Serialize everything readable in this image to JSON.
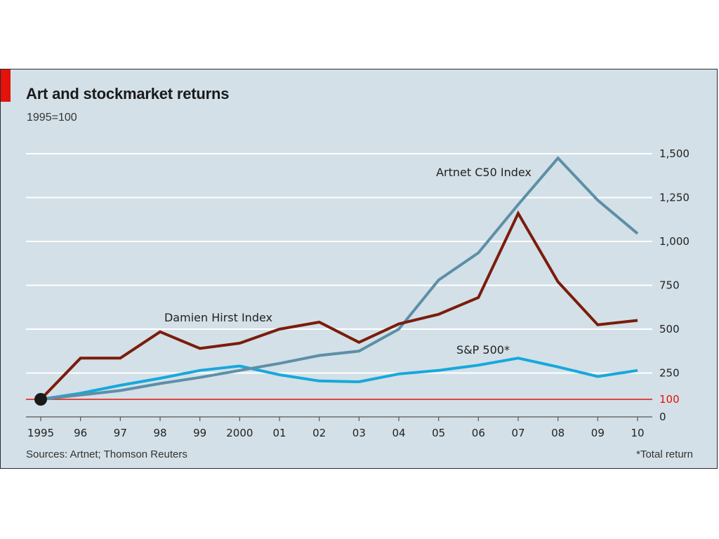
{
  "header": {
    "title": "Art and stockmarket returns",
    "subtitle": "1995=100"
  },
  "footer": {
    "source": "Sources: Artnet; Thomson Reuters",
    "footnote": "*Total return"
  },
  "colors": {
    "accent": "#e3120b",
    "background": "#d3e0e7",
    "gridline": "#ffffff",
    "baseline": "#e3120b"
  },
  "chart_data": {
    "type": "line",
    "title": "Art and stockmarket returns",
    "subtitle": "1995=100",
    "x": [
      "1995",
      "96",
      "97",
      "98",
      "99",
      "2000",
      "01",
      "02",
      "03",
      "04",
      "05",
      "06",
      "07",
      "08",
      "09",
      "10"
    ],
    "ylim": [
      0,
      1500
    ],
    "yticks": [
      0,
      250,
      500,
      750,
      1000,
      1250,
      1500
    ],
    "ytick_labels": [
      "0",
      "250",
      "500",
      "750",
      "1,000",
      "1,250",
      "1,500"
    ],
    "reference_line": {
      "value": 100,
      "label": "100",
      "color": "#e3120b"
    },
    "grid": true,
    "y_axis_side": "right",
    "start_marker": {
      "x": "1995",
      "y": 100
    },
    "series": [
      {
        "name": "Artnet C50 Index",
        "color": "#5d8fa7",
        "values": [
          100,
          125,
          150,
          190,
          225,
          265,
          305,
          350,
          375,
          500,
          780,
          935,
          1210,
          1475,
          1235,
          1045
        ]
      },
      {
        "name": "Damien Hirst Index",
        "color": "#7b1c0c",
        "values": [
          100,
          335,
          335,
          485,
          390,
          420,
          500,
          540,
          425,
          530,
          585,
          680,
          1160,
          770,
          525,
          550
        ]
      },
      {
        "name": "S&P 500*",
        "color": "#17a8dc",
        "values": [
          100,
          135,
          180,
          220,
          265,
          290,
          240,
          205,
          200,
          245,
          265,
          295,
          335,
          285,
          230,
          265
        ]
      }
    ]
  }
}
